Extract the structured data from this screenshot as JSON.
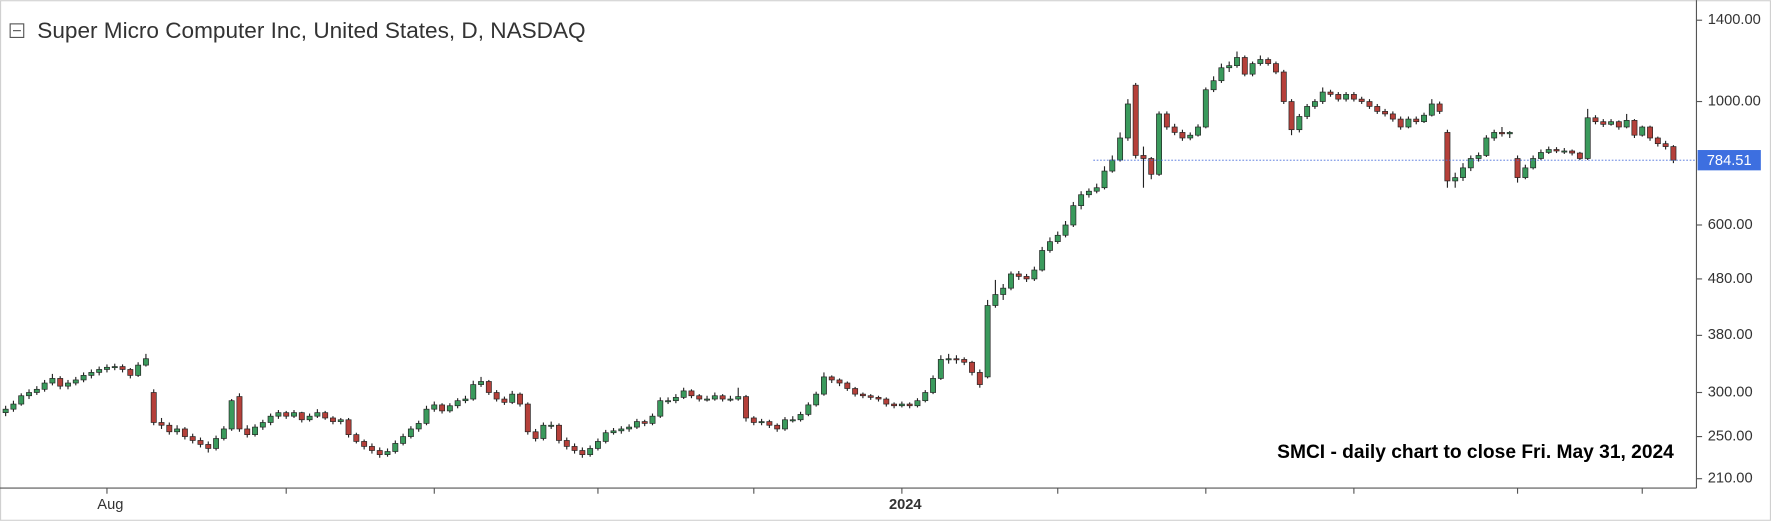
{
  "chart_data": {
    "type": "candlestick",
    "title": "Super Micro Computer Inc, United States, D, NASDAQ",
    "annotation": "SMCI - daily chart to close Fri. May 31, 2024",
    "log_scale": true,
    "up_color": "#3a9a5c",
    "down_color": "#b5403a",
    "ylim": [
      202,
      1500
    ],
    "yticks": [
      {
        "value": 1400,
        "label": "1400.00"
      },
      {
        "value": 1000,
        "label": "1000.00"
      },
      {
        "value": 600,
        "label": "600.00"
      },
      {
        "value": 480,
        "label": "480.00"
      },
      {
        "value": 380,
        "label": "380.00"
      },
      {
        "value": 300,
        "label": "300.00"
      },
      {
        "value": 250,
        "label": "250.00"
      },
      {
        "value": 210,
        "label": "210.00"
      }
    ],
    "xticks": [
      {
        "value": 13,
        "label": "Aug"
      },
      36,
      55,
      76,
      96,
      {
        "value": 115,
        "label": "2024"
      },
      135,
      154,
      173,
      194,
      210
    ],
    "ohlc": [
      [
        276,
        284,
        272,
        280
      ],
      [
        280,
        290,
        277,
        286
      ],
      [
        286,
        299,
        284,
        296
      ],
      [
        296,
        304,
        292,
        300
      ],
      [
        300,
        308,
        297,
        304
      ],
      [
        304,
        316,
        301,
        312
      ],
      [
        312,
        324,
        309,
        318
      ],
      [
        318,
        321,
        304,
        308
      ],
      [
        308,
        316,
        304,
        312
      ],
      [
        312,
        320,
        309,
        316
      ],
      [
        316,
        326,
        313,
        322
      ],
      [
        322,
        330,
        318,
        326
      ],
      [
        326,
        334,
        322,
        330
      ],
      [
        330,
        337,
        326,
        333
      ],
      [
        333,
        338,
        329,
        334
      ],
      [
        334,
        337,
        326,
        330
      ],
      [
        330,
        332,
        318,
        322
      ],
      [
        322,
        340,
        320,
        336
      ],
      [
        336,
        352,
        334,
        345
      ],
      [
        300,
        304,
        262,
        265
      ],
      [
        265,
        270,
        258,
        262
      ],
      [
        262,
        265,
        252,
        255
      ],
      [
        255,
        262,
        252,
        258
      ],
      [
        258,
        260,
        247,
        250
      ],
      [
        250,
        253,
        243,
        246
      ],
      [
        246,
        249,
        239,
        242
      ],
      [
        242,
        245,
        234,
        238
      ],
      [
        238,
        251,
        236,
        248
      ],
      [
        248,
        261,
        246,
        258
      ],
      [
        258,
        292,
        256,
        290
      ],
      [
        295,
        299,
        255,
        258
      ],
      [
        258,
        262,
        249,
        252
      ],
      [
        252,
        263,
        250,
        260
      ],
      [
        260,
        268,
        257,
        265
      ],
      [
        265,
        275,
        262,
        272
      ],
      [
        272,
        279,
        269,
        276
      ],
      [
        276,
        278,
        269,
        272
      ],
      [
        272,
        279,
        270,
        276
      ],
      [
        276,
        277,
        265,
        268
      ],
      [
        268,
        275,
        266,
        272
      ],
      [
        272,
        280,
        270,
        276
      ],
      [
        276,
        278,
        268,
        270
      ],
      [
        270,
        272,
        263,
        266
      ],
      [
        266,
        270,
        263,
        268
      ],
      [
        268,
        270,
        249,
        252
      ],
      [
        252,
        254,
        243,
        245
      ],
      [
        245,
        247,
        237,
        240
      ],
      [
        240,
        243,
        233,
        236
      ],
      [
        236,
        239,
        229,
        232
      ],
      [
        232,
        238,
        230,
        235
      ],
      [
        235,
        246,
        233,
        243
      ],
      [
        243,
        253,
        241,
        250
      ],
      [
        250,
        261,
        248,
        258
      ],
      [
        258,
        267,
        255,
        264
      ],
      [
        264,
        284,
        262,
        280
      ],
      [
        280,
        289,
        277,
        285
      ],
      [
        285,
        287,
        275,
        278
      ],
      [
        278,
        287,
        276,
        284
      ],
      [
        284,
        293,
        281,
        290
      ],
      [
        290,
        296,
        287,
        292
      ],
      [
        292,
        315,
        290,
        310
      ],
      [
        310,
        320,
        307,
        314
      ],
      [
        314,
        316,
        297,
        300
      ],
      [
        300,
        303,
        289,
        292
      ],
      [
        292,
        295,
        285,
        288
      ],
      [
        288,
        302,
        286,
        298
      ],
      [
        298,
        300,
        283,
        286
      ],
      [
        286,
        288,
        252,
        255
      ],
      [
        255,
        258,
        245,
        248
      ],
      [
        248,
        265,
        246,
        262
      ],
      [
        262,
        266,
        258,
        262
      ],
      [
        262,
        264,
        243,
        246
      ],
      [
        246,
        249,
        237,
        240
      ],
      [
        240,
        243,
        233,
        236
      ],
      [
        236,
        239,
        229,
        232
      ],
      [
        232,
        241,
        230,
        238
      ],
      [
        238,
        248,
        236,
        245
      ],
      [
        245,
        257,
        243,
        254
      ],
      [
        254,
        259,
        252,
        256
      ],
      [
        256,
        261,
        253,
        258
      ],
      [
        258,
        263,
        255,
        260
      ],
      [
        260,
        269,
        258,
        266
      ],
      [
        266,
        268,
        261,
        264
      ],
      [
        264,
        275,
        262,
        272
      ],
      [
        272,
        294,
        270,
        290
      ],
      [
        290,
        294,
        286,
        290
      ],
      [
        290,
        298,
        287,
        294
      ],
      [
        294,
        306,
        292,
        302
      ],
      [
        302,
        304,
        293,
        296
      ],
      [
        296,
        298,
        289,
        292
      ],
      [
        292,
        296,
        289,
        292
      ],
      [
        292,
        300,
        290,
        296
      ],
      [
        296,
        298,
        289,
        292
      ],
      [
        292,
        296,
        289,
        292
      ],
      [
        292,
        306,
        290,
        295
      ],
      [
        295,
        297,
        266,
        270
      ],
      [
        270,
        272,
        262,
        265
      ],
      [
        265,
        269,
        262,
        266
      ],
      [
        266,
        268,
        259,
        262
      ],
      [
        262,
        264,
        255,
        258
      ],
      [
        258,
        271,
        256,
        268
      ],
      [
        268,
        272,
        265,
        268
      ],
      [
        268,
        277,
        266,
        274
      ],
      [
        274,
        288,
        272,
        285
      ],
      [
        285,
        301,
        283,
        298
      ],
      [
        298,
        326,
        296,
        320
      ],
      [
        320,
        322,
        312,
        316
      ],
      [
        316,
        318,
        308,
        312
      ],
      [
        312,
        314,
        302,
        305
      ],
      [
        305,
        307,
        295,
        298
      ],
      [
        298,
        300,
        293,
        296
      ],
      [
        296,
        298,
        291,
        294
      ],
      [
        294,
        296,
        289,
        292
      ],
      [
        292,
        294,
        283,
        286
      ],
      [
        286,
        288,
        281,
        284
      ],
      [
        284,
        289,
        282,
        286
      ],
      [
        286,
        288,
        281,
        284
      ],
      [
        284,
        293,
        282,
        290
      ],
      [
        290,
        303,
        288,
        300
      ],
      [
        300,
        322,
        298,
        318
      ],
      [
        318,
        350,
        316,
        344
      ],
      [
        344,
        352,
        338,
        345
      ],
      [
        345,
        350,
        338,
        344
      ],
      [
        344,
        347,
        336,
        340
      ],
      [
        340,
        342,
        322,
        326
      ],
      [
        326,
        330,
        306,
        310
      ],
      [
        320,
        440,
        318,
        430
      ],
      [
        430,
        478,
        426,
        450
      ],
      [
        450,
        470,
        440,
        462
      ],
      [
        462,
        495,
        458,
        490
      ],
      [
        490,
        496,
        478,
        485
      ],
      [
        485,
        490,
        474,
        480
      ],
      [
        480,
        505,
        476,
        498
      ],
      [
        498,
        548,
        495,
        540
      ],
      [
        540,
        570,
        535,
        560
      ],
      [
        560,
        584,
        555,
        575
      ],
      [
        575,
        610,
        570,
        600
      ],
      [
        600,
        660,
        595,
        650
      ],
      [
        650,
        690,
        640,
        680
      ],
      [
        680,
        698,
        672,
        690
      ],
      [
        690,
        712,
        684,
        700
      ],
      [
        700,
        765,
        695,
        750
      ],
      [
        750,
        800,
        745,
        785
      ],
      [
        785,
        880,
        780,
        860
      ],
      [
        860,
        1010,
        850,
        990
      ],
      [
        1070,
        1080,
        790,
        800
      ],
      [
        800,
        830,
        700,
        790
      ],
      [
        790,
        795,
        725,
        740
      ],
      [
        740,
        960,
        735,
        950
      ],
      [
        950,
        960,
        890,
        900
      ],
      [
        900,
        912,
        870,
        880
      ],
      [
        880,
        890,
        850,
        860
      ],
      [
        860,
        880,
        852,
        870
      ],
      [
        870,
        910,
        865,
        900
      ],
      [
        900,
        1060,
        895,
        1050
      ],
      [
        1050,
        1110,
        1040,
        1090
      ],
      [
        1090,
        1170,
        1080,
        1150
      ],
      [
        1150,
        1180,
        1130,
        1160
      ],
      [
        1160,
        1230,
        1150,
        1200
      ],
      [
        1200,
        1210,
        1110,
        1120
      ],
      [
        1120,
        1180,
        1110,
        1170
      ],
      [
        1170,
        1210,
        1160,
        1190
      ],
      [
        1190,
        1200,
        1160,
        1170
      ],
      [
        1170,
        1180,
        1120,
        1130
      ],
      [
        1130,
        1140,
        990,
        1000
      ],
      [
        1000,
        1010,
        870,
        890
      ],
      [
        890,
        950,
        880,
        940
      ],
      [
        940,
        990,
        930,
        980
      ],
      [
        980,
        1010,
        970,
        1000
      ],
      [
        1000,
        1060,
        990,
        1040
      ],
      [
        1040,
        1050,
        1020,
        1030
      ],
      [
        1030,
        1040,
        1000,
        1010
      ],
      [
        1010,
        1040,
        1000,
        1030
      ],
      [
        1030,
        1040,
        1000,
        1010
      ],
      [
        1010,
        1020,
        990,
        1000
      ],
      [
        1000,
        1010,
        970,
        980
      ],
      [
        980,
        990,
        950,
        960
      ],
      [
        960,
        970,
        940,
        950
      ],
      [
        950,
        960,
        920,
        930
      ],
      [
        930,
        940,
        890,
        900
      ],
      [
        900,
        940,
        895,
        930
      ],
      [
        930,
        940,
        910,
        920
      ],
      [
        920,
        955,
        915,
        945
      ],
      [
        945,
        1010,
        940,
        990
      ],
      [
        990,
        1000,
        950,
        960
      ],
      [
        880,
        890,
        700,
        720
      ],
      [
        720,
        745,
        700,
        730
      ],
      [
        730,
        775,
        720,
        760
      ],
      [
        760,
        800,
        750,
        790
      ],
      [
        790,
        810,
        780,
        800
      ],
      [
        800,
        870,
        795,
        860
      ],
      [
        860,
        890,
        850,
        880
      ],
      [
        880,
        900,
        865,
        875
      ],
      [
        875,
        885,
        860,
        880
      ],
      [
        790,
        800,
        715,
        730
      ],
      [
        730,
        770,
        725,
        760
      ],
      [
        760,
        800,
        755,
        790
      ],
      [
        790,
        820,
        785,
        810
      ],
      [
        810,
        830,
        805,
        820
      ],
      [
        820,
        828,
        808,
        815
      ],
      [
        815,
        825,
        805,
        815
      ],
      [
        815,
        820,
        800,
        808
      ],
      [
        808,
        812,
        785,
        790
      ],
      [
        790,
        970,
        785,
        935
      ],
      [
        935,
        945,
        910,
        920
      ],
      [
        920,
        930,
        900,
        910
      ],
      [
        910,
        930,
        905,
        920
      ],
      [
        920,
        925,
        890,
        900
      ],
      [
        900,
        950,
        895,
        925
      ],
      [
        925,
        930,
        860,
        870
      ],
      [
        870,
        905,
        865,
        900
      ],
      [
        900,
        905,
        850,
        860
      ],
      [
        860,
        865,
        830,
        840
      ],
      [
        840,
        850,
        820,
        830
      ],
      [
        830,
        835,
        775,
        784.51
      ]
    ]
  }
}
